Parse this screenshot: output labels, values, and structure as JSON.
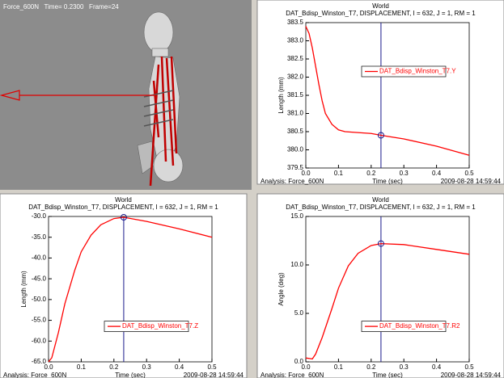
{
  "viewport": {
    "label": "Force_600N   Time= 0.2300   Frame=24"
  },
  "chart_data": [
    {
      "type": "line",
      "title": "World",
      "subtitle": "DAT_Bdisp_Winston_T7, DISPLACEMENT, I = 632, J = 1, RM = 1",
      "x_label": "Time (sec)",
      "y_label": "Length (mm)",
      "footer_left": "Analysis: Force_600N",
      "footer_right": "2009-08-28 14:59:44",
      "x": [
        0,
        0.01,
        0.02,
        0.03,
        0.04,
        0.05,
        0.06,
        0.08,
        0.1,
        0.12,
        0.15,
        0.2,
        0.23,
        0.3,
        0.4,
        0.5
      ],
      "series": [
        {
          "name": "DAT_Bdisp_Winston_T7.Y",
          "color": "#ff0000",
          "values": [
            383.4,
            383.2,
            382.8,
            382.3,
            381.8,
            381.35,
            381.0,
            380.7,
            380.55,
            380.5,
            380.48,
            380.45,
            380.4,
            380.3,
            380.1,
            379.85
          ]
        }
      ],
      "cursor_x": 0.23,
      "legend": "center",
      "xlim": [
        0,
        0.5
      ],
      "xticks": [
        {
          "value": 0,
          "label": "0.0"
        },
        0.1,
        0.2,
        0.3,
        0.4,
        0.5
      ],
      "ylim": [
        379.5,
        383.5
      ],
      "yticks": [
        379.5,
        {
          "value": 380,
          "label": "380.0"
        },
        380.5,
        {
          "value": 381,
          "label": "381.0"
        },
        381.5,
        {
          "value": 382,
          "label": "382.0"
        },
        382.5,
        {
          "value": 383,
          "label": "383.0"
        },
        383.5
      ]
    },
    {
      "type": "line",
      "title": "World",
      "subtitle": "DAT_Bdisp_Winston_T7, DISPLACEMENT, I = 632, J = 1, RM = 1",
      "x_label": "Time (sec)",
      "y_label": "Length (mm)",
      "footer_left": "Analysis: Force_600N",
      "footer_right": "2009-08-28 14:59:44",
      "x": [
        0,
        0.01,
        0.03,
        0.05,
        0.08,
        0.1,
        0.13,
        0.16,
        0.2,
        0.23,
        0.3,
        0.4,
        0.5
      ],
      "series": [
        {
          "name": "DAT_Bdisp_Winston_T7.Z",
          "color": "#ff0000",
          "values": [
            -65,
            -64,
            -58,
            -51,
            -43,
            -38.5,
            -34.5,
            -32,
            -30.5,
            -30.2,
            -31.2,
            -33,
            -35
          ]
        }
      ],
      "cursor_x": 0.23,
      "legend": "lower center",
      "xlim": [
        0,
        0.5
      ],
      "xticks": [
        {
          "value": 0,
          "label": "0.0"
        },
        0.1,
        0.2,
        0.3,
        0.4,
        0.5
      ],
      "ylim": [
        -65,
        -30
      ],
      "yticks": [
        {
          "value": -30,
          "label": "-30.0"
        },
        {
          "value": -35,
          "label": "-35.0"
        },
        {
          "value": -40,
          "label": "-40.0"
        },
        {
          "value": -45,
          "label": "-45.0"
        },
        {
          "value": -50,
          "label": "-50.0"
        },
        {
          "value": -55,
          "label": "-55.0"
        },
        {
          "value": -60,
          "label": "-60.0"
        },
        {
          "value": -65,
          "label": "-65.0"
        }
      ]
    },
    {
      "type": "line",
      "title": "World",
      "subtitle": "DAT_Bdisp_Winston_T7, DISPLACEMENT, I = 632, J = 1, RM = 1",
      "x_label": "Time (sec)",
      "y_label": "Angle (deg)",
      "footer_left": "Analysis: Force_600N",
      "footer_right": "2009-08-28 14:59:44",
      "x": [
        0,
        0.02,
        0.03,
        0.05,
        0.08,
        0.1,
        0.13,
        0.16,
        0.2,
        0.23,
        0.3,
        0.4,
        0.5
      ],
      "series": [
        {
          "name": "DAT_Bdisp_Winston_T7.R2",
          "color": "#ff0000",
          "values": [
            0.4,
            0.3,
            0.8,
            2.5,
            5.5,
            7.6,
            9.9,
            11.2,
            12.0,
            12.2,
            12.1,
            11.6,
            11.1
          ]
        }
      ],
      "cursor_x": 0.23,
      "legend": "lower center",
      "xlim": [
        0,
        0.5
      ],
      "xticks": [
        {
          "value": 0,
          "label": "0.0"
        },
        0.1,
        0.2,
        0.3,
        0.4,
        0.5
      ],
      "ylim": [
        0,
        15
      ],
      "yticks": [
        {
          "value": 0,
          "label": "0.0"
        },
        {
          "value": 5,
          "label": "5.0"
        },
        {
          "value": 10,
          "label": "10.0"
        },
        {
          "value": 15,
          "label": "15.0"
        }
      ]
    }
  ]
}
